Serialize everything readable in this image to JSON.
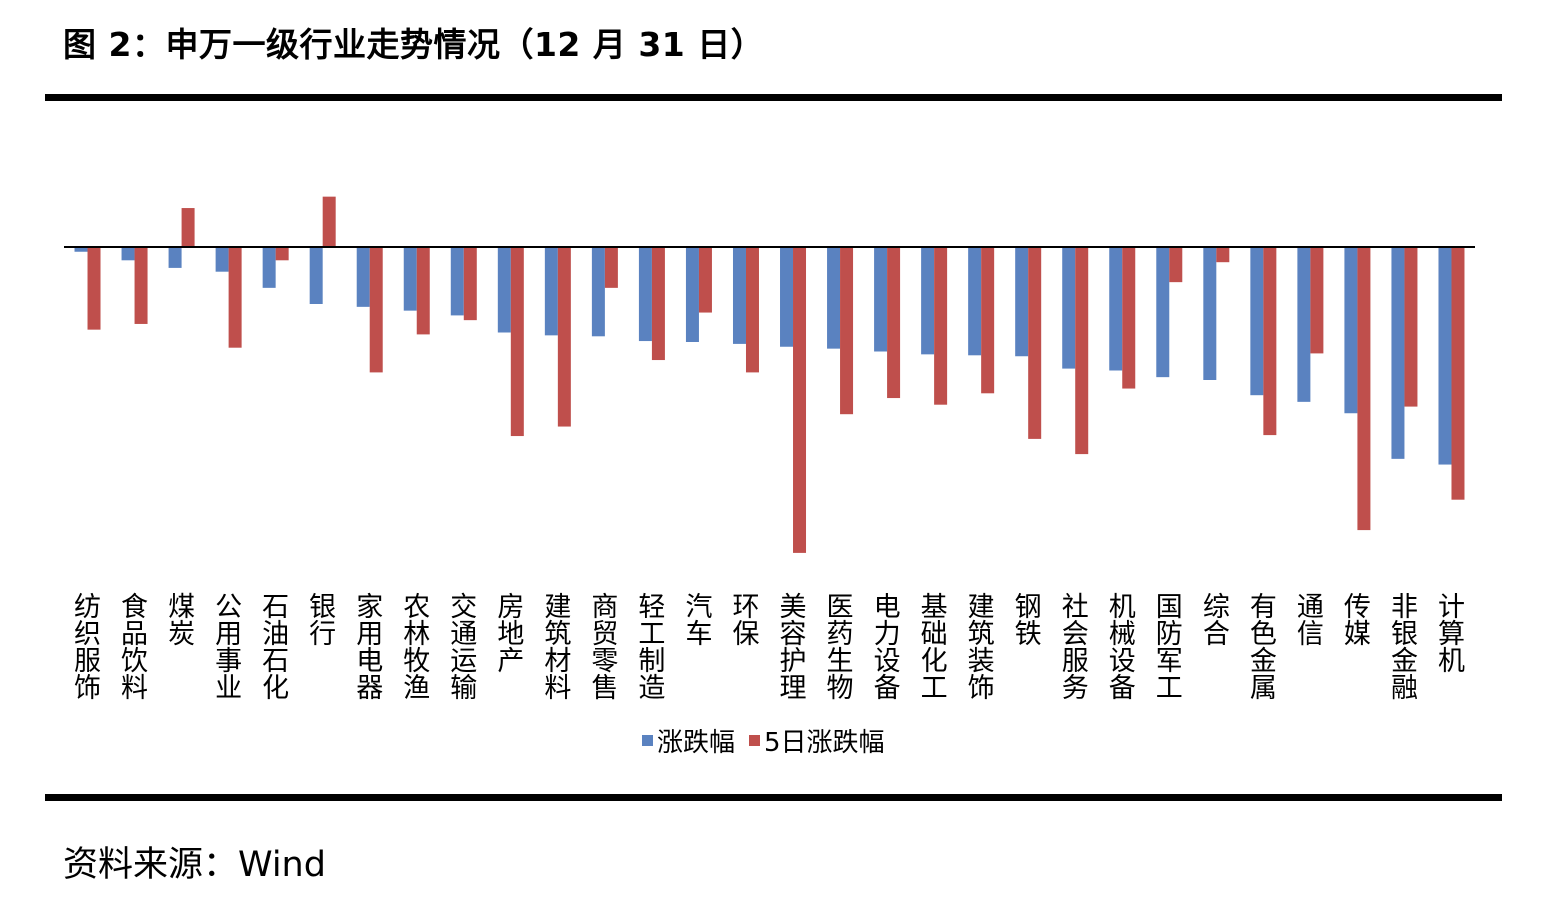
{
  "figure_title": "图 2：申万一级行业走势情况（12 月 31 日）",
  "source_text": "资料来源：Wind",
  "colors": {
    "series_1": "#5a82c0",
    "series_2": "#bf4f4c",
    "axis": "#000000"
  },
  "chart_data": {
    "type": "bar",
    "title": "",
    "xlabel": "",
    "ylabel": "",
    "y_tick_labels_shown": false,
    "grid": false,
    "legend": "bottom-center",
    "categories": [
      "纺织服饰",
      "食品饮料",
      "煤炭",
      "公用事业",
      "石油石化",
      "银行",
      "家用电器",
      "农林牧渔",
      "交通运输",
      "房地产",
      "建筑材料",
      "商贸零售",
      "轻工制造",
      "汽车",
      "环保",
      "美容护理",
      "医药生物",
      "电力设备",
      "基础化工",
      "建筑装饰",
      "钢铁",
      "社会服务",
      "机械设备",
      "国防军工",
      "综合",
      "有色金属",
      "通信",
      "传媒",
      "非银金融",
      "计算机"
    ],
    "series": [
      {
        "name": "涨跌幅",
        "color": "#5a82c0",
        "values": [
          -0.05,
          -0.14,
          -0.22,
          -0.26,
          -0.43,
          -0.6,
          -0.63,
          -0.67,
          -0.72,
          -0.9,
          -0.93,
          -0.94,
          -0.99,
          -1.0,
          -1.02,
          -1.05,
          -1.07,
          -1.1,
          -1.13,
          -1.14,
          -1.15,
          -1.28,
          -1.3,
          -1.37,
          -1.4,
          -1.56,
          -1.63,
          -1.75,
          -2.23,
          -2.29
        ]
      },
      {
        "name": "5日涨跌幅",
        "color": "#bf4f4c",
        "values": [
          -0.87,
          -0.81,
          0.41,
          -1.06,
          -0.14,
          0.53,
          -1.32,
          -0.92,
          -0.77,
          -1.99,
          -1.89,
          -0.43,
          -1.19,
          -0.69,
          -1.32,
          -3.22,
          -1.76,
          -1.59,
          -1.66,
          -1.54,
          -2.02,
          -2.18,
          -1.49,
          -0.37,
          -0.16,
          -1.98,
          -1.12,
          -2.98,
          -1.68,
          -2.66
        ]
      }
    ]
  }
}
